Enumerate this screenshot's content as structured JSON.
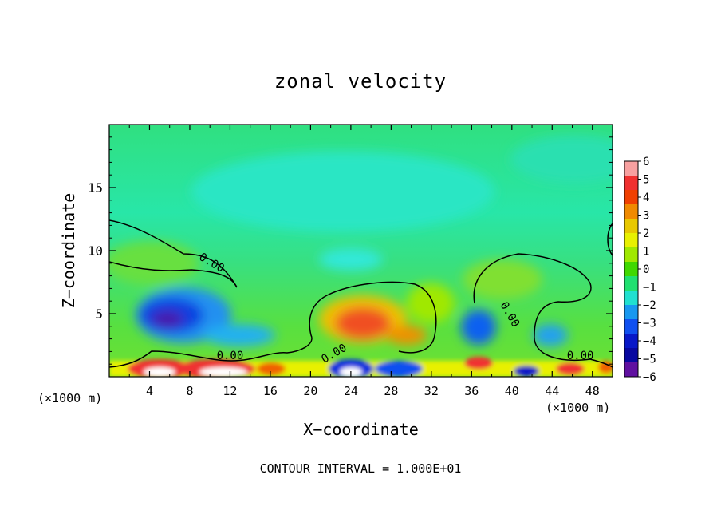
{
  "chart_data": {
    "type": "heatmap",
    "title": "zonal velocity",
    "xlabel": "X−coordinate",
    "ylabel": "Z−coordinate",
    "x_unit": "(×1000 m)",
    "xlim": [
      0,
      50
    ],
    "ylim": [
      0,
      20
    ],
    "x_ticks": [
      4,
      8,
      12,
      16,
      20,
      24,
      28,
      32,
      36,
      40,
      44,
      48
    ],
    "y_ticks": [
      5,
      10,
      15
    ],
    "colorbar": {
      "levels": [
        6,
        5,
        4,
        3,
        2,
        1,
        0,
        -1,
        -2,
        -3,
        -4,
        -5,
        -6
      ],
      "labels": [
        "6",
        "5",
        "4",
        "3",
        "2",
        "1",
        "0",
        "−1",
        "−2",
        "−3",
        "−4",
        "−5",
        "−6"
      ],
      "colors": [
        "#f7a0a0",
        "#f03030",
        "#f04000",
        "#f08a00",
        "#e8c800",
        "#e8f000",
        "#a0e800",
        "#40d800",
        "#20e070",
        "#20e0d0",
        "#1898f0",
        "#1050f0",
        "#0818c8",
        "#0808a0",
        "#6010a0"
      ]
    },
    "contour_labels": [
      "0.00",
      "0.00",
      "0.00",
      "0.00",
      "0.00"
    ],
    "footnote": "CONTOUR INTERVAL = 1.000E+01",
    "grid": false
  }
}
